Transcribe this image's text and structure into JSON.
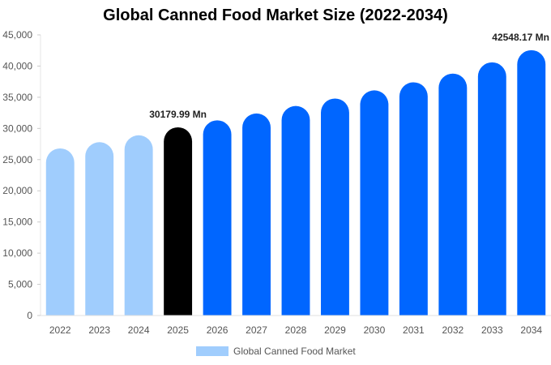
{
  "chart_data": {
    "type": "bar",
    "title": "Global Canned Food Market Size (2022-2034)",
    "xlabel": "",
    "ylabel": "",
    "ylim": [
      0,
      45000
    ],
    "yticks": [
      "0",
      "5,000",
      "10,000",
      "15,000",
      "20,000",
      "25,000",
      "30,000",
      "35,000",
      "40,000",
      "45,000"
    ],
    "ytick_values": [
      0,
      5000,
      10000,
      15000,
      20000,
      25000,
      30000,
      35000,
      40000,
      45000
    ],
    "categories": [
      "2022",
      "2023",
      "2024",
      "2025",
      "2026",
      "2027",
      "2028",
      "2029",
      "2030",
      "2031",
      "2032",
      "2033",
      "2034"
    ],
    "series": [
      {
        "name": "Global Canned Food Market",
        "values": [
          26800,
          27800,
          28900,
          30179.99,
          31300,
          32400,
          33600,
          34800,
          36100,
          37400,
          38800,
          40600,
          42548.17
        ]
      }
    ],
    "bar_colors": [
      "#a0cdfd",
      "#a0cdfd",
      "#a0cdfd",
      "#000000",
      "#0066ff",
      "#0066ff",
      "#0066ff",
      "#0066ff",
      "#0066ff",
      "#0066ff",
      "#0066ff",
      "#0066ff",
      "#0066ff"
    ],
    "legend_color": "#a0cdfd",
    "legend_position": "bottom",
    "grid": false,
    "annotations": [
      {
        "category": "2025",
        "text": "30179.99 Mn"
      },
      {
        "category": "2034",
        "text": "42548.17 Mn"
      }
    ]
  }
}
